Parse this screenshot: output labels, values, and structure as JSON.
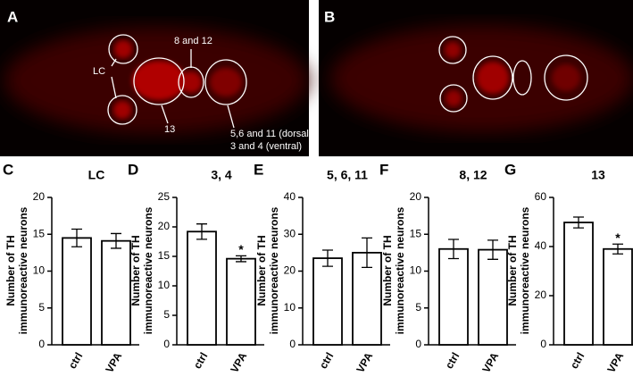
{
  "images": [
    {
      "panel": "A",
      "labels": [
        "LC",
        "8 and 12",
        "13",
        "5,6 and 11 (dorsal)",
        "3 and 4 (ventral)"
      ]
    },
    {
      "panel": "B"
    }
  ],
  "chart_data": [
    {
      "type": "bar",
      "panel": "C",
      "title": "LC",
      "ylabel": [
        "Number of TH",
        "immunoreactive neurons"
      ],
      "categories": [
        "ctrl",
        "VPA"
      ],
      "values": [
        14.5,
        14.1
      ],
      "errors": [
        1.2,
        1.0
      ],
      "ylim": [
        0,
        20
      ],
      "yticks": [
        0,
        5,
        10,
        15,
        20
      ],
      "color": "#ffffff"
    },
    {
      "type": "bar",
      "panel": "D",
      "title": "3, 4",
      "ylabel": [
        "Number of TH",
        "immunoreactive neurons"
      ],
      "categories": [
        "ctrl",
        "VPA"
      ],
      "values": [
        19.2,
        14.6
      ],
      "errors": [
        1.3,
        0.5
      ],
      "ylim": [
        0,
        25
      ],
      "yticks": [
        0,
        5,
        10,
        15,
        20,
        25
      ],
      "color": "#ffffff",
      "significance": {
        "index": 1,
        "label": "*"
      }
    },
    {
      "type": "bar",
      "panel": "E",
      "title": "5, 6, 11",
      "ylabel": [
        "Number of TH",
        "immunoreactive neurons"
      ],
      "categories": [
        "ctrl",
        "VPA"
      ],
      "values": [
        23.5,
        25
      ],
      "errors": [
        2.2,
        4.0
      ],
      "ylim": [
        0,
        40
      ],
      "yticks": [
        0,
        10,
        20,
        30,
        40
      ],
      "color": "#ffffff"
    },
    {
      "type": "bar",
      "panel": "F",
      "title": "8, 12",
      "ylabel": [
        "Number of TH",
        "immunoreactive neurons"
      ],
      "categories": [
        "ctrl",
        "VPA"
      ],
      "values": [
        13,
        12.9
      ],
      "errors": [
        1.3,
        1.3
      ],
      "ylim": [
        0,
        20
      ],
      "yticks": [
        0,
        5,
        10,
        15,
        20
      ],
      "color": "#ffffff"
    },
    {
      "type": "bar",
      "panel": "G",
      "title": "13",
      "ylabel": [
        "Number of TH",
        "immunoreactive neurons"
      ],
      "categories": [
        "ctrl",
        "VPA"
      ],
      "values": [
        49.8,
        39
      ],
      "errors": [
        2.2,
        2.0
      ],
      "ylim": [
        0,
        60
      ],
      "yticks": [
        0,
        20,
        40,
        60
      ],
      "color": "#ffffff",
      "significance": {
        "index": 1,
        "label": "*"
      }
    }
  ]
}
